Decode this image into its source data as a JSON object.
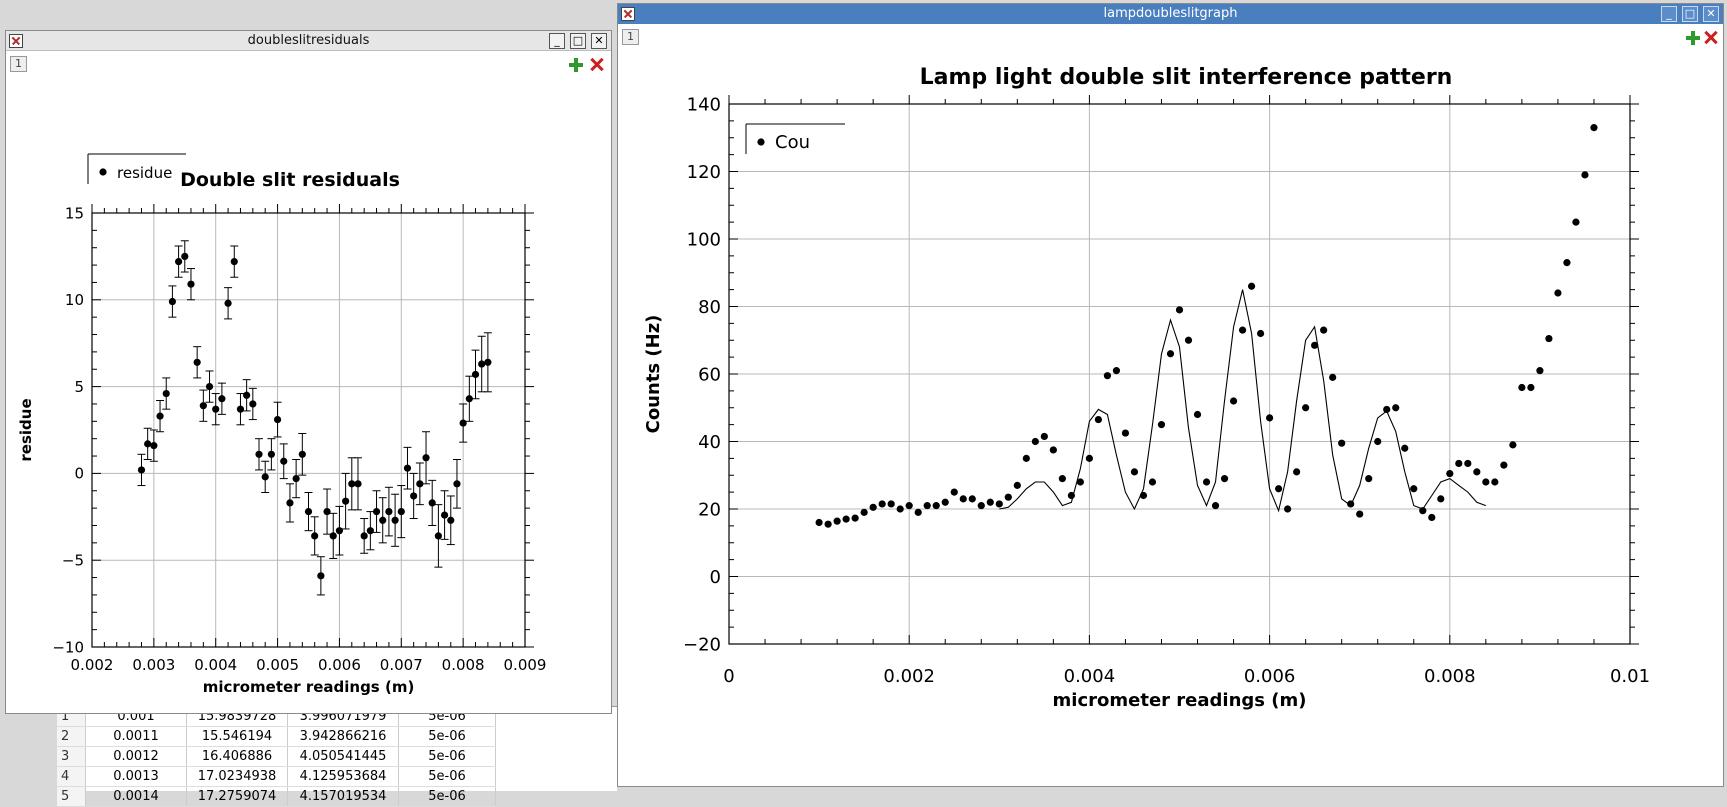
{
  "bg_table": {
    "rows": [
      [
        "1",
        "0.001",
        "15.9839728",
        "3.996071979",
        "5e-06"
      ],
      [
        "2",
        "0.0011",
        "15.546194",
        "3.942866216",
        "5e-06"
      ],
      [
        "3",
        "0.0012",
        "16.406886",
        "4.050541445",
        "5e-06"
      ],
      [
        "4",
        "0.0013",
        "17.0234938",
        "4.125953684",
        "5e-06"
      ],
      [
        "5",
        "0.0014",
        "17.2759074",
        "4.157019534",
        "5e-06"
      ]
    ]
  },
  "left_window": {
    "title": "doubleslitresiduals",
    "tab": "1"
  },
  "right_window": {
    "title": "lampdoubleslitgraph",
    "tab": "1"
  },
  "chart_data": [
    {
      "type": "scatter",
      "title": "Double slit residuals",
      "xlabel": "micrometer readings (m)",
      "ylabel": "residue",
      "xlim": [
        0.002,
        0.009
      ],
      "ylim": [
        -10,
        15
      ],
      "xticks": [
        "0.002",
        "0.003",
        "0.004",
        "0.005",
        "0.006",
        "0.007",
        "0.008",
        "0.009"
      ],
      "yticks": [
        "15",
        "10",
        "5",
        "0",
        "−5",
        "−10"
      ],
      "grid": true,
      "legend": {
        "position": "top-left",
        "label": "residue"
      },
      "series": [
        {
          "name": "residue",
          "x": [
            0.0028,
            0.0029,
            0.003,
            0.0031,
            0.0032,
            0.0033,
            0.0034,
            0.0035,
            0.0036,
            0.0037,
            0.0038,
            0.0039,
            0.004,
            0.0041,
            0.0042,
            0.0043,
            0.0044,
            0.0045,
            0.0046,
            0.0047,
            0.0048,
            0.0049,
            0.005,
            0.0051,
            0.0052,
            0.0053,
            0.0054,
            0.0055,
            0.0056,
            0.0057,
            0.0058,
            0.0059,
            0.006,
            0.0061,
            0.0062,
            0.0063,
            0.0064,
            0.0065,
            0.0066,
            0.0067,
            0.0068,
            0.0069,
            0.007,
            0.0071,
            0.0072,
            0.0073,
            0.0074,
            0.0075,
            0.0076,
            0.0077,
            0.0078,
            0.0079,
            0.008,
            0.0081,
            0.0082,
            0.0083,
            0.0084
          ],
          "y": [
            0.2,
            1.7,
            1.6,
            3.3,
            4.6,
            9.9,
            12.2,
            12.5,
            10.9,
            6.4,
            3.9,
            5.0,
            3.7,
            4.3,
            9.8,
            12.2,
            3.7,
            4.5,
            4.0,
            1.1,
            -0.2,
            1.1,
            3.1,
            0.7,
            -1.7,
            -0.3,
            1.1,
            -2.2,
            -3.6,
            -5.9,
            -2.2,
            -3.6,
            -3.3,
            -1.6,
            -0.6,
            -0.6,
            -3.6,
            -3.3,
            -2.2,
            -2.7,
            -2.2,
            -2.7,
            -2.2,
            0.3,
            -1.3,
            -0.6,
            0.9,
            -1.7,
            -3.6,
            -2.4,
            -2.7,
            -0.6,
            2.9,
            4.3,
            5.7,
            6.3,
            6.4
          ],
          "err": [
            0.9,
            0.9,
            0.9,
            0.9,
            0.9,
            0.9,
            0.9,
            0.9,
            0.9,
            0.9,
            0.9,
            0.9,
            0.9,
            0.9,
            0.9,
            0.9,
            0.9,
            0.9,
            0.9,
            0.9,
            0.9,
            0.9,
            1.0,
            1.0,
            1.1,
            1.1,
            1.2,
            1.1,
            1.1,
            1.1,
            1.3,
            1.3,
            1.4,
            1.6,
            1.5,
            1.5,
            1.0,
            1.1,
            1.2,
            1.3,
            1.4,
            1.5,
            1.5,
            1.2,
            1.3,
            1.2,
            1.5,
            1.3,
            1.8,
            1.4,
            1.4,
            1.4,
            1.1,
            1.3,
            1.4,
            1.6,
            1.7
          ]
        }
      ]
    },
    {
      "type": "scatter",
      "title": "Lamp light double slit interference pattern",
      "xlabel": "micrometer readings (m)",
      "ylabel": "Counts (Hz)",
      "xlim": [
        0,
        0.01
      ],
      "ylim": [
        -20,
        140
      ],
      "xticks": [
        "0",
        "0.002",
        "0.004",
        "0.006",
        "0.008",
        "0.01"
      ],
      "yticks": [
        "140",
        "120",
        "100",
        "80",
        "60",
        "40",
        "20",
        "0",
        "−20"
      ],
      "grid": true,
      "legend": {
        "position": "top-left",
        "label": "Cou"
      },
      "series": [
        {
          "name": "Cou",
          "x": [
            0.001,
            0.0011,
            0.0012,
            0.0013,
            0.0014,
            0.0015,
            0.0016,
            0.0017,
            0.0018,
            0.0019,
            0.002,
            0.0021,
            0.0022,
            0.0023,
            0.0024,
            0.0025,
            0.0026,
            0.0027,
            0.0028,
            0.0029,
            0.003,
            0.0031,
            0.0032,
            0.0033,
            0.0034,
            0.0035,
            0.0036,
            0.0037,
            0.0038,
            0.0039,
            0.004,
            0.0041,
            0.0042,
            0.0043,
            0.0044,
            0.0045,
            0.0046,
            0.0047,
            0.0048,
            0.0049,
            0.005,
            0.0051,
            0.0052,
            0.0053,
            0.0054,
            0.0055,
            0.0056,
            0.0057,
            0.0058,
            0.0059,
            0.006,
            0.0061,
            0.0062,
            0.0063,
            0.0064,
            0.0065,
            0.0066,
            0.0067,
            0.0068,
            0.0069,
            0.007,
            0.0071,
            0.0072,
            0.0073,
            0.0074,
            0.0075,
            0.0076,
            0.0077,
            0.0078,
            0.0079,
            0.008,
            0.0081,
            0.0082,
            0.0083,
            0.0084,
            0.0085,
            0.0086,
            0.0087,
            0.0088,
            0.0089,
            0.009,
            0.0091,
            0.0092,
            0.0093,
            0.0094,
            0.0095,
            0.0096
          ],
          "y": [
            16,
            15.5,
            16.4,
            17,
            17.3,
            19,
            20.5,
            21.5,
            21.5,
            20,
            21,
            19,
            21,
            21,
            22,
            25,
            23,
            23,
            21,
            22,
            21.5,
            23.5,
            27,
            35,
            40,
            41.5,
            37.5,
            29,
            24,
            28,
            35,
            46.5,
            59.5,
            61,
            42.5,
            31,
            24,
            28,
            45,
            66,
            79,
            70,
            48,
            28,
            21,
            29,
            52,
            73,
            86,
            72,
            47,
            26,
            20,
            31,
            50,
            68.5,
            73,
            59,
            39.5,
            21.5,
            18.5,
            29,
            40,
            49.5,
            50,
            38,
            26,
            19.5,
            17.5,
            23,
            30.5,
            33.5,
            33.5,
            31,
            28,
            28,
            33,
            39,
            56,
            56,
            61,
            70.5,
            84,
            93,
            105,
            119,
            133
          ]
        },
        {
          "name": "",
          "type": "line",
          "x": [
            0.003,
            0.0031,
            0.0032,
            0.0033,
            0.0034,
            0.0035,
            0.0036,
            0.0037,
            0.0038,
            0.0039,
            0.004,
            0.0041,
            0.0042,
            0.0043,
            0.0044,
            0.0045,
            0.0046,
            0.0047,
            0.0048,
            0.0049,
            0.005,
            0.0051,
            0.0052,
            0.0053,
            0.0054,
            0.0055,
            0.0056,
            0.0057,
            0.0058,
            0.0059,
            0.006,
            0.0061,
            0.0062,
            0.0063,
            0.0064,
            0.0065,
            0.0066,
            0.0067,
            0.0068,
            0.0069,
            0.007,
            0.0071,
            0.0072,
            0.0073,
            0.0074,
            0.0075,
            0.0076,
            0.0077,
            0.0078,
            0.0079,
            0.008,
            0.0081,
            0.0082,
            0.0083,
            0.0084
          ],
          "y": [
            20,
            20.5,
            23,
            26,
            28,
            28,
            25,
            21,
            22,
            32,
            46,
            49.5,
            48,
            36,
            25,
            20,
            26,
            45,
            66,
            76,
            68,
            44,
            27,
            21,
            28,
            52,
            74,
            85,
            72,
            46,
            26,
            19.5,
            31,
            52,
            70,
            74,
            58,
            36,
            23,
            21,
            27,
            38,
            47,
            49,
            43,
            31,
            21,
            20,
            24,
            28,
            29,
            27,
            25,
            22,
            21
          ]
        }
      ]
    }
  ]
}
